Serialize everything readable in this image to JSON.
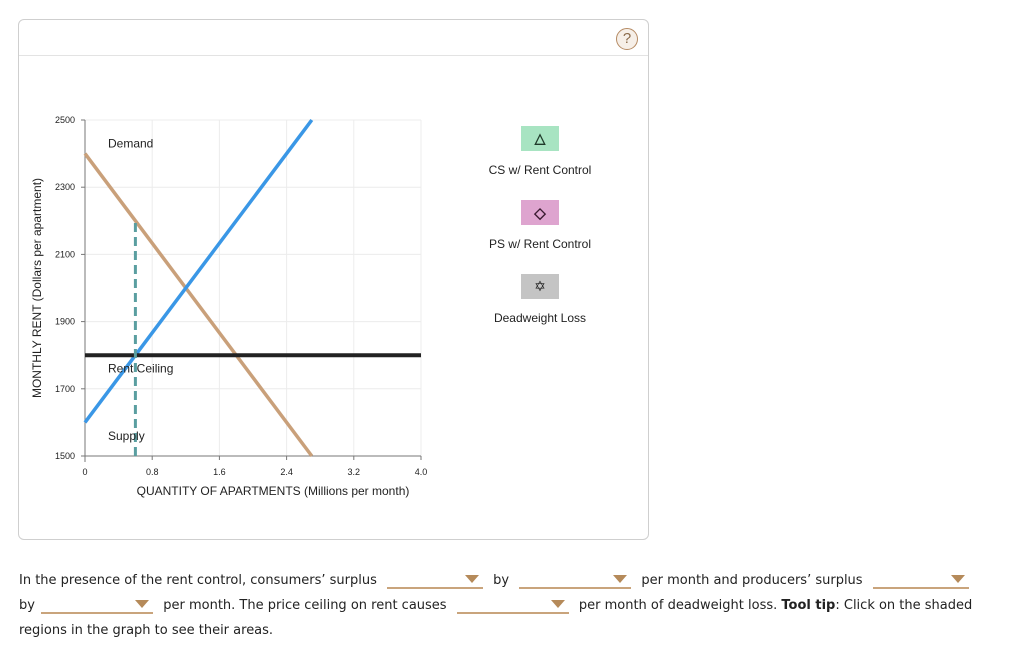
{
  "help_label": "?",
  "chart_data": {
    "type": "line",
    "title": "",
    "xlabel": "QUANTITY OF APARTMENTS (Millions per month)",
    "ylabel": "MONTHLY RENT (Dollars per apartment)",
    "xlim": [
      0,
      4.0
    ],
    "ylim": [
      1500,
      2500
    ],
    "xticks": [
      "0",
      "0.8",
      "1.6",
      "2.4",
      "3.2",
      "4.0"
    ],
    "xtick_values": [
      0,
      0.8,
      1.6,
      2.4,
      3.2,
      4.0
    ],
    "yticks": [
      "1500",
      "1700",
      "1900",
      "2100",
      "2300",
      "2500"
    ],
    "ytick_values": [
      1500,
      1700,
      1900,
      2100,
      2300,
      2500
    ],
    "grid": true,
    "series": [
      {
        "name": "Demand",
        "color": "#c9a07a",
        "points": [
          [
            0,
            2400
          ],
          [
            2.7,
            1500
          ]
        ],
        "label_at": [
          0.25,
          2430
        ]
      },
      {
        "name": "Supply",
        "color": "#3a97e6",
        "points": [
          [
            0,
            1600
          ],
          [
            2.7,
            2500
          ]
        ],
        "label_at": [
          0.25,
          1560
        ]
      },
      {
        "name": "Rent Ceiling",
        "color": "#222222",
        "points": [
          [
            0,
            1800
          ],
          [
            4.0,
            1800
          ]
        ],
        "label_at": [
          0.25,
          1760
        ]
      },
      {
        "name": "Quantity Supplied",
        "color": "#5a9ea0",
        "dashed": true,
        "points": [
          [
            0.6,
            1500
          ],
          [
            0.6,
            2200
          ]
        ]
      }
    ]
  },
  "legend": [
    {
      "label": "CS w/ Rent Control",
      "color": "#a8e4c2",
      "icon": "triangle-icon",
      "glyph": "△"
    },
    {
      "label": "PS w/ Rent Control",
      "color": "#dea4cf",
      "icon": "diamond-icon",
      "glyph": "◇"
    },
    {
      "label": "Deadweight Loss",
      "color": "#c4c4c4",
      "icon": "star-icon",
      "glyph": "✡"
    }
  ],
  "question": {
    "p1": "In the presence of the rent control, consumers’ surplus",
    "p2": "by",
    "p3": "per month and producers’ surplus",
    "p4": "by",
    "p5": "per month. The price ceiling on rent causes",
    "p6": "per month of deadweight loss.",
    "tip_bold": "Tool tip",
    "p7": ": Click on the shaded regions in the graph to see their areas."
  }
}
